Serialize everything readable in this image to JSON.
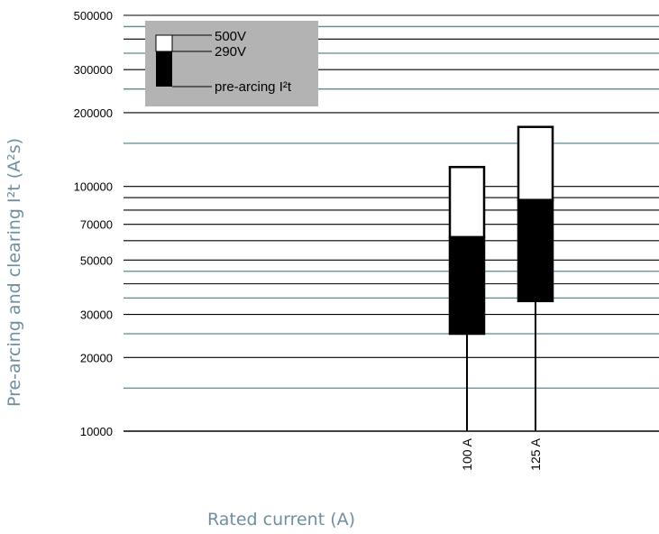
{
  "chart_data": {
    "type": "bar",
    "subtype": "floating-stacked-log",
    "y_scale": "log",
    "ylim": [
      10000,
      500000
    ],
    "xlabel": "Rated current (A)",
    "ylabel": "Pre-arcing and clearing I²t (A²s)",
    "y_tick_labels": [
      {
        "value": 500000,
        "label": "500000"
      },
      {
        "value": 300000,
        "label": "300000"
      },
      {
        "value": 200000,
        "label": "200000"
      },
      {
        "value": 100000,
        "label": "100000"
      },
      {
        "value": 70000,
        "label": "70000"
      },
      {
        "value": 50000,
        "label": "50000"
      },
      {
        "value": 30000,
        "label": "30000"
      },
      {
        "value": 20000,
        "label": "20000"
      },
      {
        "value": 10000,
        "label": "10000"
      }
    ],
    "major_gridlines": [
      500000,
      400000,
      300000,
      200000,
      100000,
      90000,
      80000,
      70000,
      60000,
      50000,
      40000,
      30000,
      20000
    ],
    "minor_gridlines": [
      450000,
      350000,
      250000,
      150000,
      45000,
      35000,
      25000,
      15000
    ],
    "categories": [
      "100 A",
      "125 A"
    ],
    "bars": [
      {
        "category": "100 A",
        "pre_arcing_low": 25000,
        "pre_arcing_high": 62000,
        "clearing_high": 120000
      },
      {
        "category": "125 A",
        "pre_arcing_low": 34000,
        "pre_arcing_high": 88000,
        "clearing_high": 175000
      }
    ],
    "legend": {
      "position": "top-left",
      "entries": [
        "500V",
        "290V",
        "pre-arcing I²t"
      ]
    },
    "colors": {
      "pre_arcing": "#000000",
      "clearing": "#ffffff",
      "legend_bg": "#b3b3b3",
      "major_grid": "#000000",
      "minor_grid": "#5e8794",
      "axis_title": "#6f8fa0"
    }
  }
}
